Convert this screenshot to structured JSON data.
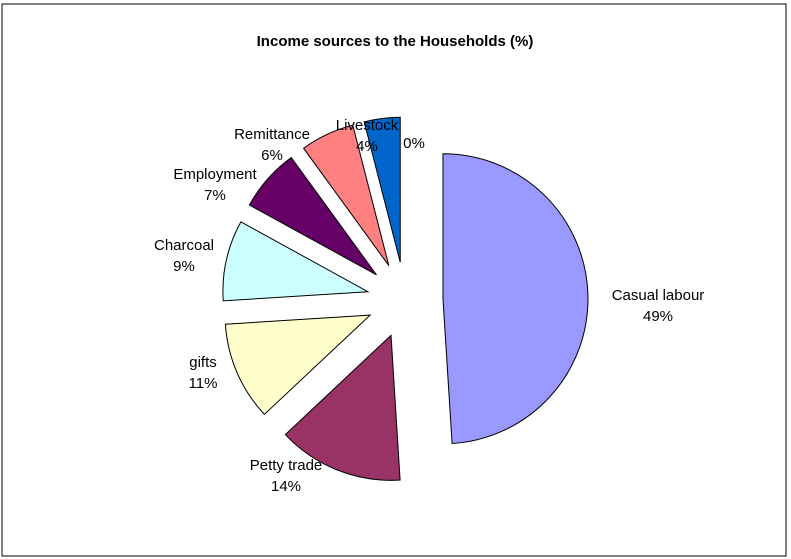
{
  "chart_data": {
    "type": "pie",
    "title": "Income sources to the Households (%)",
    "exploded": true,
    "slices": [
      {
        "label": "Casual labour",
        "value": 49,
        "value_label": "49%",
        "color": "#9999ff"
      },
      {
        "label": "Petty trade",
        "value": 14,
        "value_label": "14%",
        "color": "#993366"
      },
      {
        "label": "gifts",
        "value": 11,
        "value_label": "11%",
        "color": "#ffffcc"
      },
      {
        "label": "Charcoal",
        "value": 9,
        "value_label": "9%",
        "color": "#ccffff"
      },
      {
        "label": "Employment",
        "value": 7,
        "value_label": "7%",
        "color": "#660066"
      },
      {
        "label": "Remittance",
        "value": 6,
        "value_label": "6%",
        "color": "#ff8080"
      },
      {
        "label": "Livestock",
        "value": 4,
        "value_label": "4%",
        "color": "#0066cc"
      },
      {
        "label": "",
        "value": 0,
        "value_label": "0%",
        "color": "#ccccff"
      }
    ]
  }
}
